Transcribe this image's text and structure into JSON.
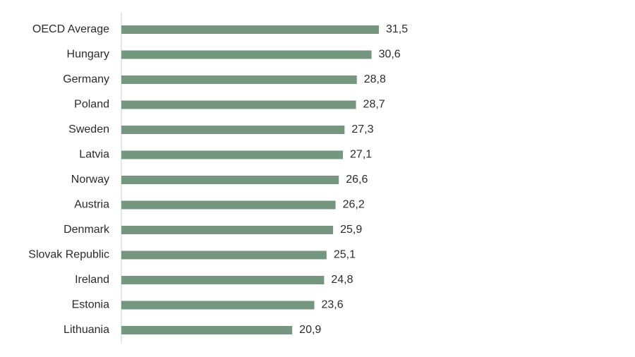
{
  "chart_data": {
    "type": "bar",
    "orientation": "horizontal",
    "title": "",
    "xlabel": "",
    "ylabel": "",
    "categories": [
      "OECD Average",
      "Hungary",
      "Germany",
      "Poland",
      "Sweden",
      "Latvia",
      "Norway",
      "Austria",
      "Denmark",
      "Slovak Republic",
      "Ireland",
      "Estonia",
      "Lithuania"
    ],
    "values": [
      31.5,
      30.6,
      28.8,
      28.7,
      27.3,
      27.1,
      26.6,
      26.2,
      25.9,
      25.1,
      24.8,
      23.6,
      20.9
    ],
    "value_labels": [
      "31,5",
      "30,6",
      "28,8",
      "28,7",
      "27,3",
      "27,1",
      "26,6",
      "26,2",
      "25,9",
      "25,1",
      "24,8",
      "23,6",
      "20,9"
    ],
    "xlim": [
      0,
      35
    ],
    "grid": false,
    "legend": "none",
    "bar_color": "#76977f"
  }
}
